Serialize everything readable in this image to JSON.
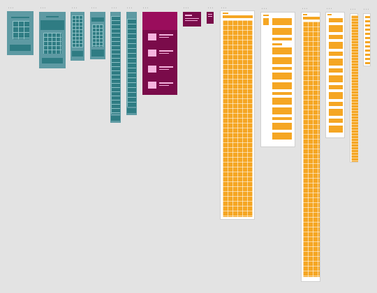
{
  "canvas": {
    "background": "#e3e3e3"
  },
  "frame_label": "• • •",
  "colors": {
    "teal": "#2f7c83",
    "teal_light": "#8fc1c6",
    "orange": "#f5a623",
    "magenta": "#7a0b4a",
    "pink": "#f5b4de"
  },
  "frames": [
    {
      "name": "frame-teal-1"
    },
    {
      "name": "frame-teal-2"
    },
    {
      "name": "frame-teal-3"
    },
    {
      "name": "frame-teal-4"
    },
    {
      "name": "frame-teal-5"
    },
    {
      "name": "frame-teal-6"
    },
    {
      "name": "frame-magenta-1"
    },
    {
      "name": "frame-magenta-2"
    },
    {
      "name": "frame-magenta-3"
    },
    {
      "name": "frame-orange-1"
    },
    {
      "name": "frame-orange-2"
    },
    {
      "name": "frame-orange-3"
    },
    {
      "name": "frame-orange-4"
    },
    {
      "name": "frame-orange-5"
    },
    {
      "name": "frame-orange-6"
    }
  ]
}
